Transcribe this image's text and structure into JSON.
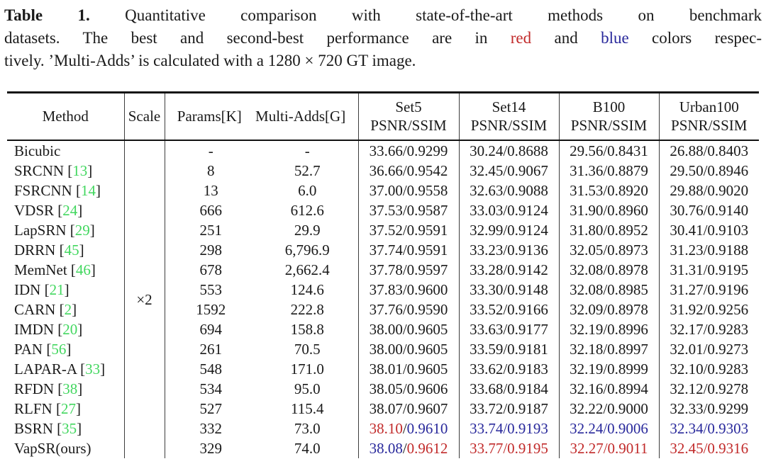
{
  "caption": {
    "lines": [
      {
        "justify": true,
        "segments": [
          {
            "text": "Table 1.",
            "bold": true
          },
          {
            "text": " Quantitative comparison with state-of-the-art methods on benchmark"
          }
        ]
      },
      {
        "justify": true,
        "segments": [
          {
            "text": "datasets. The best and second-best performance are in "
          },
          {
            "text": "red",
            "color": "red"
          },
          {
            "text": " and "
          },
          {
            "text": "blue",
            "color": "blue"
          },
          {
            "text": " colors respec-"
          }
        ]
      },
      {
        "justify": false,
        "segments": [
          {
            "text": "tively. ’Multi-Adds’ is calculated with a 1280 × 720 GT image."
          }
        ]
      }
    ]
  },
  "colors": {
    "best": "#c12a2a",
    "second_best": "#28289b",
    "citation": "#42d75f",
    "text": "#1a1a1a"
  },
  "table": {
    "headers": {
      "method": "Method",
      "scale": "Scale",
      "params": "Params[K]",
      "multi_adds": "Multi-Adds[G]",
      "benchmarks": [
        {
          "name": "Set5",
          "metric": "PSNR/SSIM"
        },
        {
          "name": "Set14",
          "metric": "PSNR/SSIM"
        },
        {
          "name": "B100",
          "metric": "PSNR/SSIM"
        },
        {
          "name": "Urban100",
          "metric": "PSNR/SSIM"
        }
      ]
    },
    "scale_value": "×2",
    "rows": [
      {
        "method": "Bicubic",
        "cite": null,
        "params": "-",
        "multi_adds": "-",
        "results": [
          [
            "33.66",
            "0.9299"
          ],
          [
            "30.24",
            "0.8688"
          ],
          [
            "29.56",
            "0.8431"
          ],
          [
            "26.88",
            "0.8403"
          ]
        ]
      },
      {
        "method": "SRCNN",
        "cite": "13",
        "params": "8",
        "multi_adds": "52.7",
        "results": [
          [
            "36.66",
            "0.9542"
          ],
          [
            "32.45",
            "0.9067"
          ],
          [
            "31.36",
            "0.8879"
          ],
          [
            "29.50",
            "0.8946"
          ]
        ]
      },
      {
        "method": "FSRCNN",
        "cite": "14",
        "params": "13",
        "multi_adds": "6.0",
        "results": [
          [
            "37.00",
            "0.9558"
          ],
          [
            "32.63",
            "0.9088"
          ],
          [
            "31.53",
            "0.8920"
          ],
          [
            "29.88",
            "0.9020"
          ]
        ]
      },
      {
        "method": "VDSR",
        "cite": "24",
        "params": "666",
        "multi_adds": "612.6",
        "results": [
          [
            "37.53",
            "0.9587"
          ],
          [
            "33.03",
            "0.9124"
          ],
          [
            "31.90",
            "0.8960"
          ],
          [
            "30.76",
            "0.9140"
          ]
        ]
      },
      {
        "method": "LapSRN",
        "cite": "29",
        "params": "251",
        "multi_adds": "29.9",
        "results": [
          [
            "37.52",
            "0.9591"
          ],
          [
            "32.99",
            "0.9124"
          ],
          [
            "31.80",
            "0.8952"
          ],
          [
            "30.41",
            "0.9103"
          ]
        ]
      },
      {
        "method": "DRRN",
        "cite": "45",
        "params": "298",
        "multi_adds": "6,796.9",
        "results": [
          [
            "37.74",
            "0.9591"
          ],
          [
            "33.23",
            "0.9136"
          ],
          [
            "32.05",
            "0.8973"
          ],
          [
            "31.23",
            "0.9188"
          ]
        ]
      },
      {
        "method": "MemNet",
        "cite": "46",
        "params": "678",
        "multi_adds": "2,662.4",
        "results": [
          [
            "37.78",
            "0.9597"
          ],
          [
            "33.28",
            "0.9142"
          ],
          [
            "32.08",
            "0.8978"
          ],
          [
            "31.31",
            "0.9195"
          ]
        ]
      },
      {
        "method": "IDN",
        "cite": "21",
        "params": "553",
        "multi_adds": "124.6",
        "results": [
          [
            "37.83",
            "0.9600"
          ],
          [
            "33.30",
            "0.9148"
          ],
          [
            "32.08",
            "0.8985"
          ],
          [
            "31.27",
            "0.9196"
          ]
        ]
      },
      {
        "method": "CARN",
        "cite": "2",
        "params": "1592",
        "multi_adds": "222.8",
        "results": [
          [
            "37.76",
            "0.9590"
          ],
          [
            "33.52",
            "0.9166"
          ],
          [
            "32.09",
            "0.8978"
          ],
          [
            "31.92",
            "0.9256"
          ]
        ]
      },
      {
        "method": "IMDN",
        "cite": "20",
        "params": "694",
        "multi_adds": "158.8",
        "results": [
          [
            "38.00",
            "0.9605"
          ],
          [
            "33.63",
            "0.9177"
          ],
          [
            "32.19",
            "0.8996"
          ],
          [
            "32.17",
            "0.9283"
          ]
        ]
      },
      {
        "method": "PAN",
        "cite": "56",
        "params": "261",
        "multi_adds": "70.5",
        "results": [
          [
            "38.00",
            "0.9605"
          ],
          [
            "33.59",
            "0.9181"
          ],
          [
            "32.18",
            "0.8997"
          ],
          [
            "32.01",
            "0.9273"
          ]
        ]
      },
      {
        "method": "LAPAR-A",
        "cite": "33",
        "params": "548",
        "multi_adds": "171.0",
        "results": [
          [
            "38.01",
            "0.9605"
          ],
          [
            "33.62",
            "0.9183"
          ],
          [
            "32.19",
            "0.8999"
          ],
          [
            "32.10",
            "0.9283"
          ]
        ]
      },
      {
        "method": "RFDN",
        "cite": "38",
        "params": "534",
        "multi_adds": "95.0",
        "results": [
          [
            "38.05",
            "0.9606"
          ],
          [
            "33.68",
            "0.9184"
          ],
          [
            "32.16",
            "0.8994"
          ],
          [
            "32.12",
            "0.9278"
          ]
        ]
      },
      {
        "method": "RLFN",
        "cite": "27",
        "params": "527",
        "multi_adds": "115.4",
        "results": [
          [
            "38.07",
            "0.9607"
          ],
          [
            "33.72",
            "0.9187"
          ],
          [
            "32.22",
            "0.9000"
          ],
          [
            "32.33",
            "0.9299"
          ]
        ]
      },
      {
        "method": "BSRN",
        "cite": "35",
        "params": "332",
        "multi_adds": "73.0",
        "results": [
          [
            "38.10",
            "0.9610",
            "red",
            "blue"
          ],
          [
            "33.74",
            "0.9193",
            "blue",
            "blue"
          ],
          [
            "32.24",
            "0.9006",
            "blue",
            "blue"
          ],
          [
            "32.34",
            "0.9303",
            "blue",
            "blue"
          ]
        ]
      },
      {
        "method": "VapSR(ours)",
        "cite": null,
        "params": "329",
        "multi_adds": "74.0",
        "results": [
          [
            "38.08",
            "0.9612",
            "blue",
            "red"
          ],
          [
            "33.77",
            "0.9195",
            "red",
            "red"
          ],
          [
            "32.27",
            "0.9011",
            "red",
            "red"
          ],
          [
            "32.45",
            "0.9316",
            "red",
            "red"
          ]
        ]
      }
    ]
  }
}
